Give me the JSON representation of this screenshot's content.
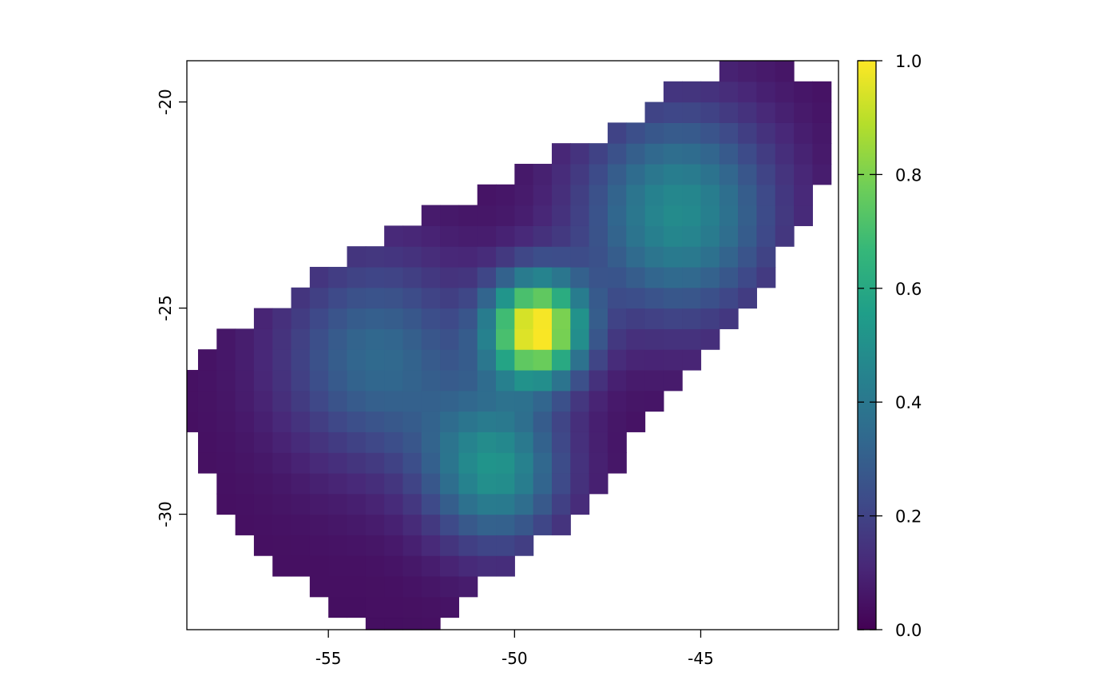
{
  "chart_data": {
    "type": "heatmap",
    "title": "",
    "xlabel": "",
    "ylabel": "",
    "xlim": [
      -58.8,
      -41.3
    ],
    "ylim": [
      -32.8,
      -19.0
    ],
    "x_ticks": [
      -55,
      -50,
      -45
    ],
    "x_tick_labels": [
      "-55",
      "-50",
      "-45"
    ],
    "y_ticks": [
      -20,
      -25,
      -30
    ],
    "y_tick_labels": [
      "-20",
      "-25",
      "-30"
    ],
    "grid": false,
    "colorbar": {
      "placement": "right",
      "range": [
        0.0,
        1.0
      ],
      "ticks": [
        0.0,
        0.2,
        0.4,
        0.6,
        0.8,
        1.0
      ],
      "tick_labels": [
        "0.0",
        "0.2",
        "0.4",
        "0.6",
        "0.8",
        "1.0"
      ],
      "colormap": "viridis",
      "colormap_stops": [
        "#440154",
        "#482878",
        "#3e4a89",
        "#31688e",
        "#26828e",
        "#1f9e89",
        "#35b779",
        "#6ece58",
        "#b5de2b",
        "#fde725"
      ]
    },
    "cell_size": 0.5,
    "region_polygon": [
      [
        -43.7,
        -18.9
      ],
      [
        -42.8,
        -19.2
      ],
      [
        -41.3,
        -19.8
      ],
      [
        -41.3,
        -21.5
      ],
      [
        -43.2,
        -24.4
      ],
      [
        -46.2,
        -27.6
      ],
      [
        -48.6,
        -30.3
      ],
      [
        -51.9,
        -32.5
      ],
      [
        -52.3,
        -32.8
      ],
      [
        -54.1,
        -32.8
      ],
      [
        -55.6,
        -31.7
      ],
      [
        -57.2,
        -30.6
      ],
      [
        -58.3,
        -28.9
      ],
      [
        -58.8,
        -27.7
      ],
      [
        -58.8,
        -26.3
      ],
      [
        -57.4,
        -25.4
      ],
      [
        -55.2,
        -24.2
      ],
      [
        -53.4,
        -23.2
      ],
      [
        -51.2,
        -22.3
      ],
      [
        -47.8,
        -20.8
      ],
      [
        -45.5,
        -19.6
      ]
    ],
    "background_value": 0.04,
    "value_peaks": [
      {
        "x": -49.4,
        "y": -25.5,
        "value": 0.96,
        "spread": 0.9
      },
      {
        "x": -45.6,
        "y": -22.7,
        "value": 0.44,
        "spread": 1.8
      },
      {
        "x": -50.5,
        "y": -28.9,
        "value": 0.46,
        "spread": 1.3
      },
      {
        "x": -53.7,
        "y": -26.2,
        "value": 0.3,
        "spread": 1.8
      }
    ]
  }
}
